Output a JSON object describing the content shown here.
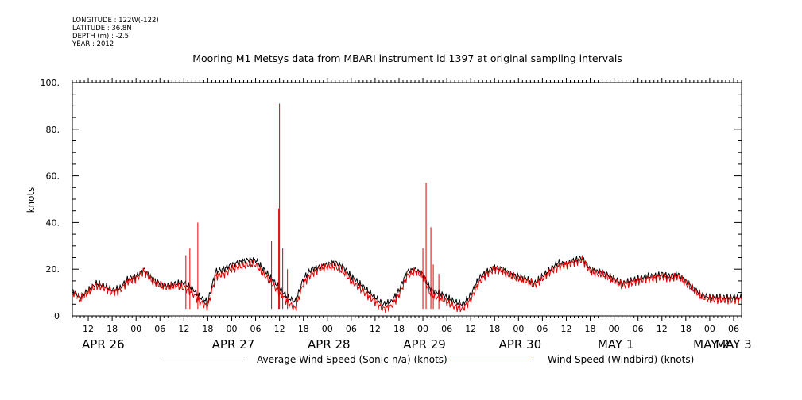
{
  "meta": {
    "longitude": "LONGITUDE : 122W(-122)",
    "latitude": "LATITUDE : 36.8N",
    "depth": "DEPTH (m) : -2.5",
    "year": "YEAR : 2012"
  },
  "chart_data": {
    "type": "line",
    "title": "Mooring M1 Metsys data from MBARI instrument id 1397 at original sampling intervals",
    "ylabel": "knots",
    "xlabel": "",
    "ylim": [
      0,
      100
    ],
    "yticks": [
      "0",
      "20.",
      "40.",
      "60.",
      "80.",
      "100."
    ],
    "xlim_hours": [
      8,
      176
    ],
    "hour_tick_labels": [
      "12",
      "18",
      "00",
      "06",
      "12",
      "18",
      "00",
      "06",
      "12",
      "18",
      "00",
      "06",
      "12",
      "18",
      "00",
      "06",
      "12",
      "18",
      "00",
      "06",
      "12",
      "18",
      "00",
      "06",
      "12",
      "18",
      "00",
      "06"
    ],
    "day_labels": [
      "APR 26",
      "APR 27",
      "APR 28",
      "APR 29",
      "APR 30",
      "MAY  1",
      "MAY  2",
      "MAY  3"
    ],
    "grid": false,
    "legend_position": "bottom",
    "series": [
      {
        "name": "Average Wind Speed (Sonic-n/a) (knots)",
        "color": "#000000",
        "x_hours": [
          8,
          10,
          12,
          14,
          16,
          18,
          20,
          22,
          24,
          26,
          28,
          30,
          32,
          34,
          36,
          38,
          40,
          42,
          44,
          46,
          48,
          50,
          52,
          54,
          56,
          58,
          60,
          62,
          64,
          66,
          68,
          70,
          72,
          74,
          76,
          78,
          80,
          82,
          84,
          86,
          88,
          90,
          92,
          94,
          96,
          98,
          100,
          102,
          104,
          106,
          108,
          110,
          112,
          114,
          116,
          118,
          120,
          122,
          124,
          126,
          128,
          130,
          132,
          134,
          136,
          138,
          140,
          142,
          144,
          146,
          148,
          150,
          152,
          154,
          156,
          158,
          160,
          162,
          164,
          166,
          168,
          170,
          172,
          174,
          176
        ],
        "values": [
          11,
          8,
          11,
          14,
          13,
          11,
          12,
          16,
          17,
          20,
          16,
          14,
          13,
          14,
          14,
          12,
          8,
          6,
          19,
          20,
          22,
          23,
          24,
          24,
          20,
          16,
          12,
          8,
          6,
          16,
          20,
          21,
          22,
          23,
          21,
          17,
          14,
          11,
          8,
          5,
          6,
          11,
          19,
          20,
          18,
          11,
          10,
          8,
          6,
          5,
          9,
          16,
          19,
          21,
          20,
          18,
          17,
          16,
          14,
          17,
          20,
          23,
          22,
          24,
          25,
          20,
          19,
          18,
          16,
          14,
          15,
          16,
          17,
          17,
          18,
          17,
          18,
          15,
          12,
          9,
          8,
          8,
          8,
          8,
          8
        ]
      },
      {
        "name": "Wind Speed (Windbird) (knots)",
        "color": "#dd0000",
        "x_hours": [
          8,
          10,
          12,
          14,
          16,
          18,
          20,
          22,
          24,
          26,
          28,
          30,
          32,
          34,
          36,
          38,
          40,
          42,
          44,
          46,
          48,
          50,
          52,
          54,
          56,
          58,
          60,
          62,
          64,
          66,
          68,
          70,
          72,
          74,
          76,
          78,
          80,
          82,
          84,
          86,
          88,
          90,
          92,
          94,
          96,
          98,
          100,
          102,
          104,
          106,
          108,
          110,
          112,
          114,
          116,
          118,
          120,
          122,
          124,
          126,
          128,
          130,
          132,
          134,
          136,
          138,
          140,
          142,
          144,
          146,
          148,
          150,
          152,
          154,
          156,
          158,
          160,
          162,
          164,
          166,
          168,
          170,
          172,
          174,
          176
        ],
        "values": [
          10,
          7,
          10,
          13,
          12,
          10,
          11,
          15,
          16,
          19,
          15,
          13,
          12,
          13,
          12,
          10,
          6,
          4,
          17,
          18,
          20,
          21,
          22,
          22,
          18,
          14,
          10,
          6,
          3,
          14,
          18,
          20,
          21,
          21,
          19,
          15,
          12,
          9,
          6,
          3,
          4,
          9,
          17,
          19,
          17,
          9,
          8,
          6,
          4,
          3,
          7,
          14,
          18,
          20,
          19,
          17,
          16,
          15,
          13,
          16,
          19,
          21,
          22,
          23,
          24,
          19,
          18,
          17,
          15,
          13,
          14,
          15,
          16,
          16,
          17,
          16,
          17,
          14,
          11,
          8,
          7,
          7,
          7,
          7,
          7
        ],
        "spikes": [
          {
            "x": 36.5,
            "y": 26
          },
          {
            "x": 37.5,
            "y": 29
          },
          {
            "x": 39.5,
            "y": 40
          },
          {
            "x": 58.0,
            "y": 32
          },
          {
            "x": 59.8,
            "y": 46
          },
          {
            "x": 60.0,
            "y": 91
          },
          {
            "x": 60.8,
            "y": 29
          },
          {
            "x": 62.0,
            "y": 20
          },
          {
            "x": 96.0,
            "y": 29
          },
          {
            "x": 96.8,
            "y": 57
          },
          {
            "x": 98.0,
            "y": 38
          },
          {
            "x": 98.6,
            "y": 22
          },
          {
            "x": 100.0,
            "y": 18
          }
        ]
      }
    ]
  }
}
